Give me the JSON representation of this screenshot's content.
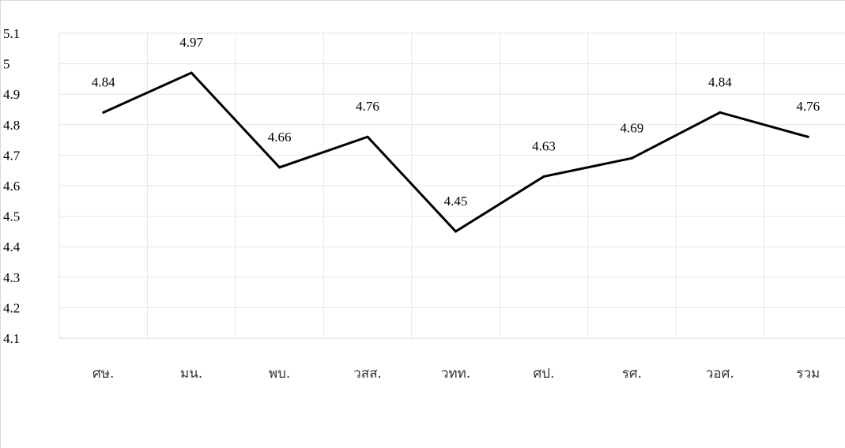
{
  "chart_data": {
    "type": "line",
    "title": "",
    "xlabel": "",
    "ylabel": "",
    "categories": [
      "ศษ.",
      "มน.",
      "พบ.",
      "วสส.",
      "วทท.",
      "ศป.",
      "รศ.",
      "วอศ.",
      "รวม"
    ],
    "series": [
      {
        "values": [
          4.84,
          4.97,
          4.66,
          4.76,
          4.45,
          4.63,
          4.69,
          4.84,
          4.76
        ],
        "color": "#000000"
      }
    ],
    "data_labels": [
      "4.84",
      "4.97",
      "4.66",
      "4.76",
      "4.45",
      "4.63",
      "4.69",
      "4.84",
      "4.76"
    ],
    "ylim": [
      4.1,
      5.1
    ],
    "yticks": [
      "4.1",
      "4.2",
      "4.3",
      "4.4",
      "4.5",
      "4.6",
      "4.7",
      "4.8",
      "4.9",
      "5",
      "5.1"
    ],
    "grid": true,
    "legend": "none"
  }
}
